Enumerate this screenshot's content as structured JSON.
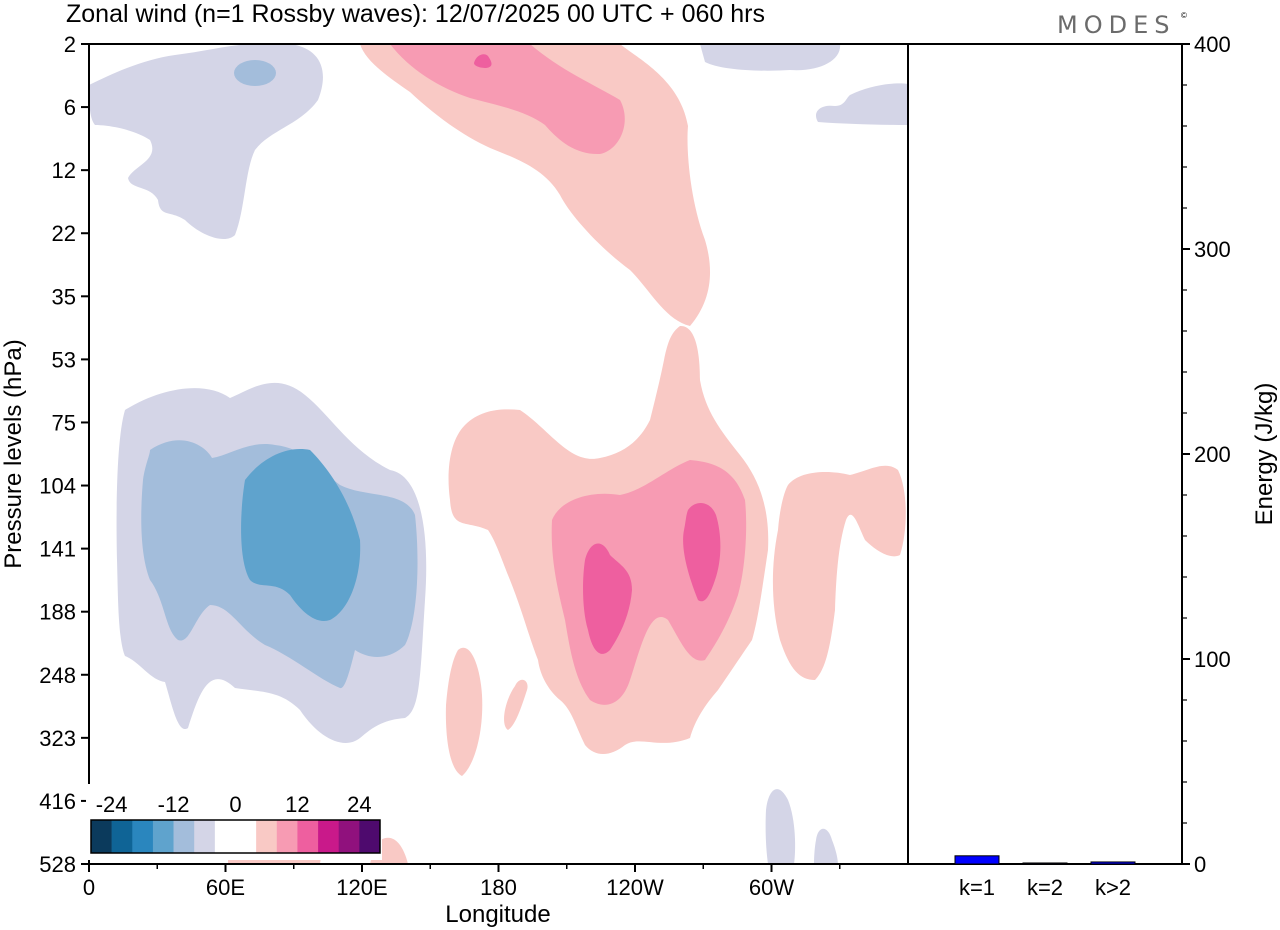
{
  "header": {
    "title": "Zonal wind (n=1 Rossby waves):  12/07/2025  00 UTC  + 060 hrs",
    "logo": "MODES",
    "logo_mark": "©"
  },
  "chart_data": [
    {
      "type": "heatmap",
      "title": "Zonal wind (n=1 Rossby waves):  12/07/2025  00 UTC  + 060 hrs",
      "xlabel": "Longitude",
      "ylabel": "Pressure levels (hPa)",
      "x_ticks": [
        "0",
        "60E",
        "120E",
        "180",
        "120W",
        "60W"
      ],
      "x_tick_values_deg_east": [
        0,
        60,
        120,
        180,
        240,
        300
      ],
      "x_range_deg_east": [
        0,
        360
      ],
      "y_ticks": [
        "2",
        "6",
        "12",
        "22",
        "35",
        "53",
        "75",
        "104",
        "141",
        "188",
        "248",
        "323",
        "416",
        "528"
      ],
      "y_range_hPa": [
        2,
        528
      ],
      "y_direction": "pressure decreasing upward",
      "colorbar": {
        "tick_labels": [
          "-24",
          "-12",
          "0",
          "12",
          "24"
        ],
        "tick_values": [
          -24,
          -12,
          0,
          12,
          24
        ],
        "colors": [
          "#0b3a5c",
          "#0f6496",
          "#2a86be",
          "#5fa3cd",
          "#a3bddb",
          "#d4d5e7",
          "#ffffff",
          "#ffffff",
          "#f9c9c5",
          "#f79bb3",
          "#ee5f9f",
          "#c9198a",
          "#90117d",
          "#4e0a6e"
        ]
      },
      "features": [
        {
          "sign": "negative",
          "peak_level": "-12 to -16",
          "lon_center_deg_east": 95,
          "pressure_range_hPa": [
            60,
            330
          ],
          "peak_hPa": 141
        },
        {
          "sign": "negative",
          "peak_level": "-4 to -8",
          "lon_center_deg_east": 60,
          "pressure_range_hPa": [
            2,
            20
          ],
          "peak_hPa": 4
        },
        {
          "sign": "positive",
          "peak_level": "8 to 12",
          "lon_center_deg_east": 175,
          "pressure_range_hPa": [
            2,
            35
          ],
          "peak_hPa": 3
        },
        {
          "sign": "positive",
          "peak_level": "8 to 12",
          "lon_center_deg_east": 225,
          "pressure_range_hPa": [
            75,
            350
          ],
          "peak_hPa": 150
        },
        {
          "sign": "positive",
          "peak_level": "8 to 12",
          "lon_center_deg_east": 252,
          "pressure_range_hPa": [
            100,
            180
          ],
          "peak_hPa": 130
        }
      ]
    },
    {
      "type": "bar",
      "ylabel": "Energy (J/kg)",
      "categories": [
        "k=1",
        "k=2",
        "k>2"
      ],
      "values": [
        4,
        0.5,
        1
      ],
      "ylim": [
        0,
        400
      ],
      "y_ticks": [
        "0",
        "100",
        "200",
        "300",
        "400"
      ],
      "bar_color": "#0000ff"
    }
  ]
}
